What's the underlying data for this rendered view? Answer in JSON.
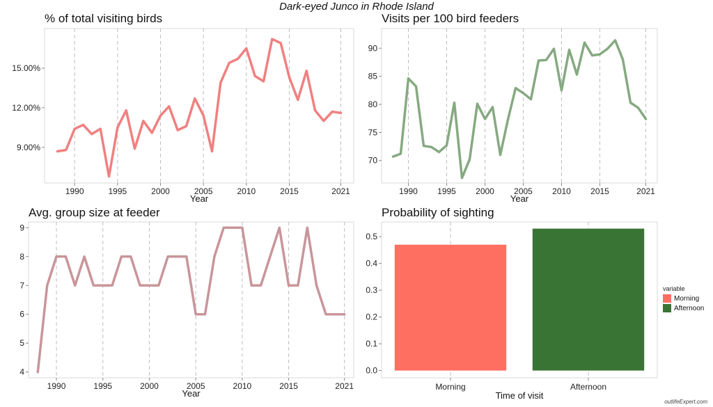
{
  "title": "Dark-eyed Junco in Rhode Island",
  "watermark": "outlifeExpert.com",
  "chart_data": [
    {
      "type": "line",
      "title": "% of total visiting birds",
      "xlabel": "Year",
      "ylabel": "",
      "color": "#f08080",
      "xlim": [
        1986.5,
        2022.5
      ],
      "ylim": [
        6.3,
        18.0
      ],
      "xticks": [
        1990,
        1995,
        2000,
        2005,
        2010,
        2015,
        2021
      ],
      "yticks": [
        9,
        12,
        15
      ],
      "ytick_labels": [
        "9.00%",
        "12.00%",
        "15.00%"
      ],
      "x": [
        1988,
        1989,
        1990,
        1991,
        1992,
        1993,
        1994,
        1995,
        1996,
        1997,
        1998,
        1999,
        2000,
        2001,
        2002,
        2003,
        2004,
        2005,
        2006,
        2007,
        2008,
        2009,
        2010,
        2011,
        2012,
        2013,
        2014,
        2015,
        2016,
        2017,
        2018,
        2019,
        2020,
        2021
      ],
      "values": [
        8.7,
        8.8,
        10.4,
        10.7,
        10.0,
        10.4,
        6.8,
        10.5,
        11.8,
        8.9,
        11.0,
        10.1,
        11.4,
        12.1,
        10.3,
        10.6,
        12.7,
        11.4,
        8.7,
        13.9,
        15.4,
        15.7,
        16.5,
        14.4,
        14.0,
        17.2,
        16.9,
        14.3,
        12.6,
        14.8,
        11.8,
        11.0,
        11.7,
        11.6
      ]
    },
    {
      "type": "line",
      "title": "Visits per 100 bird feeders",
      "xlabel": "Year",
      "ylabel": "",
      "color": "#86a981",
      "xlim": [
        1986.5,
        2022.5
      ],
      "ylim": [
        66.0,
        93.5
      ],
      "xticks": [
        1990,
        1995,
        2000,
        2005,
        2010,
        2015,
        2021
      ],
      "yticks": [
        70,
        75,
        80,
        85,
        90
      ],
      "ytick_labels": [
        "70",
        "75",
        "80",
        "85",
        "90"
      ],
      "x": [
        1988,
        1989,
        1990,
        1991,
        1992,
        1993,
        1994,
        1995,
        1996,
        1997,
        1998,
        1999,
        2000,
        2001,
        2002,
        2003,
        2004,
        2005,
        2006,
        2007,
        2008,
        2009,
        2010,
        2011,
        2012,
        2013,
        2014,
        2015,
        2016,
        2017,
        2018,
        2019,
        2020,
        2021
      ],
      "values": [
        70.7,
        71.2,
        84.6,
        83.2,
        72.6,
        72.4,
        71.5,
        72.7,
        80.3,
        66.9,
        70.2,
        80.1,
        77.4,
        79.5,
        71.0,
        77.3,
        82.9,
        82.0,
        80.9,
        87.8,
        87.9,
        89.9,
        82.5,
        89.7,
        85.3,
        91.0,
        88.7,
        88.9,
        89.9,
        91.4,
        88.0,
        80.3,
        79.4,
        77.4
      ]
    },
    {
      "type": "line",
      "title": "Avg. group size at feeder",
      "xlabel": "Year",
      "ylabel": "",
      "color": "#c9959a",
      "xlim": [
        1987.0,
        2022.0
      ],
      "ylim": [
        3.8,
        9.2
      ],
      "xticks": [
        1990,
        1995,
        2000,
        2005,
        2010,
        2015,
        2021
      ],
      "yticks": [
        4,
        5,
        6,
        7,
        8,
        9
      ],
      "ytick_labels": [
        "4",
        "5",
        "6",
        "7",
        "8",
        "9"
      ],
      "x": [
        1988,
        1989,
        1990,
        1991,
        1992,
        1993,
        1994,
        1995,
        1996,
        1997,
        1998,
        1999,
        2000,
        2001,
        2002,
        2003,
        2004,
        2005,
        2006,
        2007,
        2008,
        2009,
        2010,
        2011,
        2012,
        2013,
        2014,
        2015,
        2016,
        2017,
        2018,
        2019,
        2020,
        2021
      ],
      "values": [
        4,
        7,
        8,
        8,
        7,
        8,
        7,
        7,
        7,
        8,
        8,
        7,
        7,
        7,
        8,
        8,
        8,
        6,
        6,
        8,
        9,
        9,
        9,
        7,
        7,
        8,
        9,
        7,
        7,
        9,
        7,
        6,
        6,
        6
      ]
    },
    {
      "type": "bar",
      "title": "Probability of sighting",
      "xlabel": "Time of visit",
      "ylabel": "",
      "categories": [
        "Morning",
        "Afternoon"
      ],
      "values": [
        0.47,
        0.53
      ],
      "colors": [
        "#ff6f61",
        "#3a7434"
      ],
      "ylim": [
        -0.027,
        0.555
      ],
      "yticks": [
        0.0,
        0.1,
        0.2,
        0.3,
        0.4,
        0.5
      ],
      "ytick_labels": [
        "0.0",
        "0.1",
        "0.2",
        "0.3",
        "0.4",
        "0.5"
      ],
      "legend": {
        "title": "variable",
        "position": "right",
        "entries": [
          {
            "label": "Morning",
            "color": "#ff6f61"
          },
          {
            "label": "Afternoon",
            "color": "#3a7434"
          }
        ]
      }
    }
  ]
}
